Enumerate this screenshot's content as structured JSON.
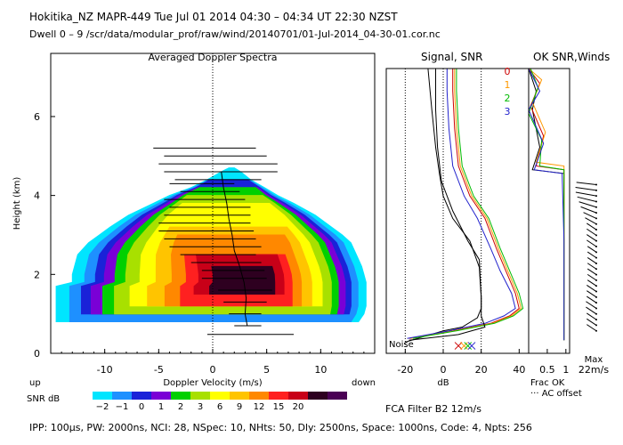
{
  "header": {
    "line1": "Hokitika_NZ   MAPR-449   Tue Jul 01 2014 04:30 – 04:34 UT 22:30 NZST",
    "line2": "Dwell   0 –   9    /scr/data/modular_prof/raw/wind/20140701/01-Jul-2014_04-30-01.cor.nc"
  },
  "footer": {
    "params": "IPP: 100μs,  PW: 2000ns,  NCI:  28,  NSpec: 10,  NHts: 50,  Dly: 2500ns,  Space: 1000ns,  Code: 4,  Npts: 256",
    "fca_filter": "FCA Filter B2 12m/s"
  },
  "chart_data": [
    {
      "type": "heatmap",
      "title": "Averaged Doppler Spectra",
      "xlabel": "Doppler Velocity (m/s)",
      "ylabel": "Height (km)",
      "xlim": [
        -15,
        15
      ],
      "ylim": [
        0,
        7.6
      ],
      "xticks": [
        -10,
        -5,
        0,
        5,
        10
      ],
      "yticks": [
        0,
        2,
        4,
        6
      ],
      "direction_labels": {
        "left": "up",
        "right": "down"
      },
      "colorbar": {
        "label": "SNR dB",
        "tick_labels": [
          "−2",
          "−1",
          "0",
          "1",
          "2",
          "3",
          "6",
          "9",
          "12",
          "15",
          "20"
        ],
        "colors": [
          "#00e5ff",
          "#1e90ff",
          "#1a22d8",
          "#7a00d6",
          "#00d000",
          "#a8e000",
          "#ffff00",
          "#ffc400",
          "#ff8800",
          "#ff2020",
          "#c80018",
          "#2e0020",
          "#4a0054"
        ]
      },
      "spectra": [
        {
          "h": 0.67,
          "l": -2.0,
          "r": 2.0
        },
        {
          "h": 0.8,
          "l": -14.5,
          "r": 13.5
        },
        {
          "h": 1.0,
          "l": -14.5,
          "r": 14.0
        },
        {
          "h": 1.2,
          "l": -14.5,
          "r": 14.2
        },
        {
          "h": 1.5,
          "l": -14.5,
          "r": 14.2
        },
        {
          "h": 1.7,
          "l": -14.5,
          "r": 14.2
        },
        {
          "h": 1.8,
          "l": -13.0,
          "r": 14.2
        },
        {
          "h": 2.0,
          "l": -13.0,
          "r": 14.0
        },
        {
          "h": 2.2,
          "l": -12.8,
          "r": 13.8
        },
        {
          "h": 2.5,
          "l": -12.5,
          "r": 13.3
        },
        {
          "h": 2.8,
          "l": -11.5,
          "r": 12.8
        },
        {
          "h": 3.0,
          "l": -10.5,
          "r": 12.0
        },
        {
          "h": 3.2,
          "l": -9.5,
          "r": 11.0
        },
        {
          "h": 3.5,
          "l": -7.8,
          "r": 9.5
        },
        {
          "h": 3.8,
          "l": -5.5,
          "r": 7.5
        },
        {
          "h": 4.0,
          "l": -4.0,
          "r": 6.0
        },
        {
          "h": 4.2,
          "l": -2.0,
          "r": 4.8
        },
        {
          "h": 4.4,
          "l": -0.5,
          "r": 3.5
        },
        {
          "h": 4.6,
          "l": 0.8,
          "r": 2.6
        },
        {
          "h": 4.7,
          "l": 1.5,
          "r": 2.0
        }
      ],
      "mean_velocity": [
        {
          "h": 0.7,
          "v": 3.2
        },
        {
          "h": 1.0,
          "v": 3.0
        },
        {
          "h": 1.4,
          "v": 3.1
        },
        {
          "h": 1.8,
          "v": 2.9
        },
        {
          "h": 2.2,
          "v": 2.5
        },
        {
          "h": 2.6,
          "v": 2.0
        },
        {
          "h": 3.0,
          "v": 1.8
        },
        {
          "h": 3.4,
          "v": 1.5
        },
        {
          "h": 3.8,
          "v": 1.3
        },
        {
          "h": 4.2,
          "v": 1.0
        },
        {
          "h": 4.6,
          "v": 0.8
        }
      ],
      "error_bars": [
        {
          "h": 0.48,
          "l": -0.5,
          "r": 7.5
        },
        {
          "h": 0.7,
          "l": 2.0,
          "r": 4.5
        },
        {
          "h": 1.0,
          "l": 1.5,
          "r": 4.5
        },
        {
          "h": 1.3,
          "l": 1.0,
          "r": 5.0
        },
        {
          "h": 1.6,
          "l": 0.5,
          "r": 5.5
        },
        {
          "h": 1.9,
          "l": -1.0,
          "r": 5.0
        },
        {
          "h": 2.1,
          "l": -1.0,
          "r": 4.8
        },
        {
          "h": 2.3,
          "l": -2.0,
          "r": 4.5
        },
        {
          "h": 2.5,
          "l": -3.0,
          "r": 4.0
        },
        {
          "h": 2.7,
          "l": -4.0,
          "r": 4.5
        },
        {
          "h": 2.9,
          "l": -4.5,
          "r": 4.0
        },
        {
          "h": 3.1,
          "l": -5.0,
          "r": 3.8
        },
        {
          "h": 3.3,
          "l": -5.0,
          "r": 3.5
        },
        {
          "h": 3.5,
          "l": -4.5,
          "r": 3.5
        },
        {
          "h": 3.7,
          "l": -4.0,
          "r": 3.5
        },
        {
          "h": 3.9,
          "l": -4.5,
          "r": 3.0
        },
        {
          "h": 4.1,
          "l": -3.0,
          "r": 2.5
        },
        {
          "h": 4.3,
          "l": -4.0,
          "r": 2.0
        },
        {
          "h": 4.4,
          "l": -3.5,
          "r": 4.5
        },
        {
          "h": 4.6,
          "l": -4.5,
          "r": 6.0
        },
        {
          "h": 4.8,
          "l": -5.0,
          "r": 6.0
        },
        {
          "h": 5.0,
          "l": -4.5,
          "r": 5.0
        },
        {
          "h": 5.2,
          "l": -5.5,
          "r": 4.0
        }
      ]
    },
    {
      "type": "line",
      "title": "Signal, SNR",
      "xlabel": "dB",
      "xlim": [
        -30,
        45
      ],
      "ylim": [
        0,
        7.6
      ],
      "xticks": [
        -20,
        0,
        20,
        40
      ],
      "dotted_x": [
        -20,
        0,
        20
      ],
      "legend": [
        "0",
        "1",
        "2",
        "3"
      ],
      "noise_label": "Noise",
      "series": [
        {
          "name": "noise",
          "color": "#000000",
          "x": [
            -20,
            0,
            10,
            18,
            20,
            20,
            19,
            13,
            5,
            -1,
            -3,
            -4,
            -4
          ],
          "y": [
            0.3,
            0.6,
            0.7,
            0.95,
            1.2,
            1.5,
            2.5,
            3.0,
            3.8,
            4.6,
            5.5,
            6.5,
            7.6
          ]
        },
        {
          "name": "0",
          "color": "#cc0000",
          "x": [
            -18,
            5,
            25,
            35,
            40,
            38,
            33,
            28,
            22,
            14,
            8,
            6,
            5,
            5
          ],
          "y": [
            0.4,
            0.6,
            0.8,
            1.0,
            1.2,
            1.6,
            2.2,
            2.8,
            3.6,
            4.2,
            5.0,
            6.0,
            7.0,
            7.6
          ]
        },
        {
          "name": "1",
          "color": "#ff9900",
          "x": [
            -17,
            6,
            26,
            36,
            41,
            39,
            34,
            29,
            23,
            15,
            9,
            7,
            6,
            6
          ],
          "y": [
            0.4,
            0.6,
            0.8,
            1.0,
            1.2,
            1.6,
            2.2,
            2.8,
            3.6,
            4.2,
            5.0,
            6.0,
            7.0,
            7.6
          ]
        },
        {
          "name": "2",
          "color": "#00bb00",
          "x": [
            -16,
            7,
            27,
            37,
            42,
            40,
            35,
            30,
            24,
            16,
            10,
            8,
            7,
            7
          ],
          "y": [
            0.4,
            0.6,
            0.8,
            1.0,
            1.2,
            1.6,
            2.2,
            2.8,
            3.6,
            4.2,
            5.0,
            6.0,
            7.0,
            7.6
          ]
        },
        {
          "name": "3",
          "color": "#2222cc",
          "x": [
            -19,
            3,
            22,
            32,
            38,
            36,
            30,
            25,
            18,
            11,
            5,
            3,
            2,
            2
          ],
          "y": [
            0.4,
            0.6,
            0.8,
            1.0,
            1.2,
            1.6,
            2.2,
            2.8,
            3.6,
            4.2,
            5.0,
            6.0,
            7.0,
            7.6
          ]
        },
        {
          "name": "signal",
          "color": "#000000",
          "x": [
            -18,
            8,
            22,
            20,
            20,
            19,
            14,
            5,
            0,
            -2,
            -4,
            -6,
            -8
          ],
          "y": [
            0.35,
            0.5,
            0.7,
            1.0,
            1.5,
            2.3,
            3.0,
            3.6,
            4.2,
            4.8,
            5.5,
            6.5,
            7.6
          ]
        }
      ],
      "markers": [
        {
          "x": 8,
          "y": 0.2,
          "color": "#cc0000"
        },
        {
          "x": 11,
          "y": 0.2,
          "color": "#ff9900"
        },
        {
          "x": 13,
          "y": 0.2,
          "color": "#00bb00"
        },
        {
          "x": 15,
          "y": 0.2,
          "color": "#2222cc"
        }
      ]
    },
    {
      "type": "line",
      "title": "OK SNR,Winds",
      "xlabel": "Frac OK",
      "xlim": [
        0,
        1.1
      ],
      "ylim": [
        0,
        7.6
      ],
      "xticks": [
        0.5,
        1
      ],
      "tick_labels": [
        "0.5",
        "1"
      ],
      "legend": [
        "Frac OK",
        "··· AC offset"
      ],
      "series": [
        {
          "name": "black",
          "color": "#000000",
          "x": [
            0.95,
            0.95,
            0.95,
            0.95,
            0.1,
            0.3,
            0.1,
            0.2,
            0.0
          ],
          "y": [
            0.35,
            0.5,
            3.0,
            4.8,
            4.9,
            5.5,
            6.5,
            7.0,
            7.6
          ]
        },
        {
          "name": "red",
          "color": "#cc0000",
          "x": [
            0.95,
            0.95,
            0.95,
            0.95,
            0.2,
            0.4,
            0.05,
            0.3,
            0.0
          ],
          "y": [
            0.35,
            0.5,
            3.0,
            4.9,
            5.0,
            5.8,
            6.6,
            7.2,
            7.6
          ]
        },
        {
          "name": "orange",
          "color": "#ff9900",
          "x": [
            0.95,
            0.95,
            0.95,
            0.95,
            0.2,
            0.45,
            0.1,
            0.35,
            0.0
          ],
          "y": [
            0.35,
            0.5,
            3.0,
            5.0,
            5.1,
            5.9,
            6.7,
            7.3,
            7.6
          ]
        },
        {
          "name": "green",
          "color": "#00bb00",
          "x": [
            0.95,
            0.95,
            0.95,
            0.95,
            0.3,
            0.35,
            0.0,
            0.25,
            0.05
          ],
          "y": [
            0.35,
            0.5,
            3.0,
            4.9,
            5.0,
            5.7,
            6.4,
            7.1,
            7.6
          ]
        },
        {
          "name": "blue",
          "color": "#2222cc",
          "x": [
            0.95,
            0.95,
            0.95,
            0.9,
            0.15,
            0.4,
            0.0,
            0.3,
            0.0
          ],
          "y": [
            0.35,
            0.5,
            3.0,
            4.8,
            4.9,
            5.6,
            6.5,
            7.0,
            7.6
          ]
        }
      ]
    },
    {
      "type": "scatter",
      "title": "Winds",
      "scale_label": [
        "Max",
        "22m/s"
      ],
      "barbs": [
        {
          "h": 0.6,
          "dir": 225,
          "spd": 0.6
        },
        {
          "h": 0.75,
          "dir": 225,
          "spd": 0.6
        },
        {
          "h": 0.9,
          "dir": 225,
          "spd": 0.6
        },
        {
          "h": 1.05,
          "dir": 225,
          "spd": 0.65
        },
        {
          "h": 1.2,
          "dir": 225,
          "spd": 0.65
        },
        {
          "h": 1.35,
          "dir": 225,
          "spd": 0.6
        },
        {
          "h": 1.5,
          "dir": 225,
          "spd": 0.6
        },
        {
          "h": 1.65,
          "dir": 225,
          "spd": 0.6
        },
        {
          "h": 1.8,
          "dir": 225,
          "spd": 0.55
        },
        {
          "h": 1.95,
          "dir": 225,
          "spd": 0.55
        },
        {
          "h": 2.1,
          "dir": 225,
          "spd": 0.55
        },
        {
          "h": 2.25,
          "dir": 225,
          "spd": 0.55
        },
        {
          "h": 2.4,
          "dir": 225,
          "spd": 0.55
        },
        {
          "h": 2.55,
          "dir": 225,
          "spd": 0.55
        },
        {
          "h": 2.7,
          "dir": 225,
          "spd": 0.55
        },
        {
          "h": 2.85,
          "dir": 225,
          "spd": 0.6
        },
        {
          "h": 3.0,
          "dir": 225,
          "spd": 0.6
        },
        {
          "h": 3.15,
          "dir": 225,
          "spd": 0.6
        },
        {
          "h": 3.3,
          "dir": 225,
          "spd": 0.6
        },
        {
          "h": 3.45,
          "dir": 230,
          "spd": 0.65
        },
        {
          "h": 3.6,
          "dir": 235,
          "spd": 0.7
        },
        {
          "h": 3.75,
          "dir": 240,
          "spd": 0.8
        },
        {
          "h": 3.9,
          "dir": 245,
          "spd": 0.85
        },
        {
          "h": 4.05,
          "dir": 250,
          "spd": 0.9
        },
        {
          "h": 4.2,
          "dir": 255,
          "spd": 0.95
        },
        {
          "h": 4.35,
          "dir": 258,
          "spd": 0.95
        },
        {
          "h": 4.5,
          "dir": 260,
          "spd": 0.9
        }
      ]
    }
  ]
}
